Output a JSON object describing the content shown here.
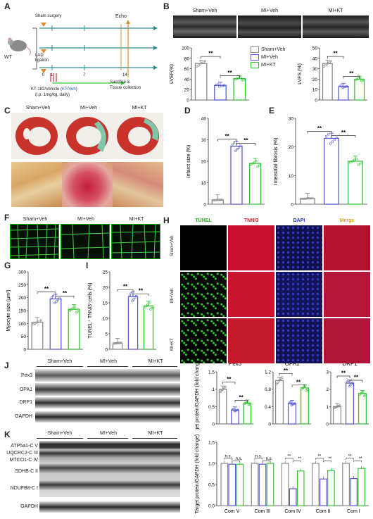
{
  "panels": {
    "A": "A",
    "B": "B",
    "C": "C",
    "D": "D",
    "E": "E",
    "F": "F",
    "G": "G",
    "H": "H",
    "I": "I",
    "J": "J",
    "K": "K"
  },
  "colors": {
    "sham": "#8a8a8a",
    "miveh": "#5b5bd6",
    "mikt": "#35c435",
    "protocol_teal": "#2e8b8b",
    "protocol_orange": "#e08a2a",
    "protocol_green": "#33cc33",
    "protocol_blue": "#2255cc"
  },
  "groups": {
    "sham": "Sham+Veh",
    "miveh": "MI+Veh",
    "mikt": "MI+KT"
  },
  "panelA": {
    "mouse": "WT",
    "sham": "Sham surgery",
    "lad": "LAD ligation",
    "echo": "Echo",
    "ticks": [
      "0",
      "1",
      "7",
      "14"
    ],
    "drug_prefix": "KT-182/Vehicle (",
    "drug_kt": "KT",
    "drug_sep": "/",
    "drug_veh": "Veh",
    "drug_suffix": ")",
    "dose": "(i.p. 1mg/kg, daily)",
    "sacrifice": "Sacrifice &",
    "tissue": "Tissue collection"
  },
  "panelB": {
    "sig": "**"
  },
  "chart_data": [
    {
      "panel": "B-LVEF",
      "type": "bar",
      "categories": [
        "Sham+Veh",
        "MI+Veh",
        "MI+KT"
      ],
      "values": [
        70,
        28,
        41
      ],
      "ylabel": "LVEF(%)",
      "ylim": [
        0,
        100
      ],
      "yticks": [
        0,
        20,
        40,
        60,
        80,
        100
      ],
      "sig": [
        "**",
        "**"
      ]
    },
    {
      "panel": "B-LVFS",
      "type": "bar",
      "categories": [
        "Sham+Veh",
        "MI+Veh",
        "MI+KT"
      ],
      "values": [
        35,
        13,
        20
      ],
      "ylabel": "LVFS (%)",
      "ylim": [
        0,
        50
      ],
      "yticks": [
        0,
        10,
        20,
        30,
        40,
        50
      ],
      "sig": [
        "**",
        "**"
      ]
    },
    {
      "panel": "D",
      "type": "bar",
      "categories": [
        "Sham+Veh",
        "MI+Veh",
        "MI+KT"
      ],
      "values": [
        2,
        27,
        19
      ],
      "ylabel": "Infarct size (%)",
      "ylim": [
        0,
        40
      ],
      "yticks": [
        0,
        10,
        20,
        30,
        40
      ],
      "sig": [
        "**",
        "**"
      ]
    },
    {
      "panel": "E",
      "type": "bar",
      "categories": [
        "Sham+Veh",
        "MI+Veh",
        "MI+KT"
      ],
      "values": [
        2,
        23,
        15
      ],
      "ylabel": "Interstitial fibrosis (%)",
      "ylim": [
        0,
        30
      ],
      "yticks": [
        0,
        10,
        20,
        30
      ],
      "sig": [
        "**",
        "**"
      ]
    },
    {
      "panel": "G",
      "type": "bar",
      "categories": [
        "Sham+Veh",
        "MI+Veh",
        "MI+KT"
      ],
      "values": [
        105,
        195,
        155
      ],
      "ylabel": "Myocyte size (µm²)",
      "ylim": [
        0,
        300
      ],
      "yticks": [
        0,
        50,
        100,
        150,
        200,
        250,
        300
      ],
      "sig": [
        "**",
        "**"
      ]
    },
    {
      "panel": "I",
      "type": "bar",
      "categories": [
        "Sham+Veh",
        "MI+Veh",
        "MI+KT"
      ],
      "values": [
        2,
        17,
        14
      ],
      "ylabel": "TUNEL⁺ TNNI3⁺cells (%)",
      "ylim": [
        0,
        25
      ],
      "yticks": [
        0,
        5,
        10,
        15,
        20,
        25
      ],
      "sig": [
        "**",
        "**"
      ]
    },
    {
      "panel": "J-Pex3",
      "type": "bar",
      "title": "Pex3",
      "categories": [
        "Sham+Veh",
        "MI+Veh",
        "MI+KT"
      ],
      "values": [
        1.0,
        0.4,
        0.6
      ],
      "ylabel": "Target protein/GAPDH (fold change)",
      "ylim": [
        0,
        1.5
      ],
      "yticks": [
        0.0,
        0.5,
        1.0,
        1.5
      ],
      "sig": [
        "**",
        "**"
      ]
    },
    {
      "panel": "J-OPA1",
      "type": "bar",
      "title": "OPA1",
      "categories": [
        "Sham+Veh",
        "MI+Veh",
        "MI+KT"
      ],
      "values": [
        1.0,
        0.47,
        0.83
      ],
      "ylim": [
        0,
        1.2
      ],
      "yticks": [
        0.0,
        0.4,
        0.8,
        1.2
      ],
      "sig": [
        "**",
        "**"
      ]
    },
    {
      "panel": "J-DRP1",
      "type": "bar",
      "title": "DRP1",
      "categories": [
        "Sham+Veh",
        "MI+Veh",
        "MI+KT"
      ],
      "values": [
        1.0,
        2.35,
        1.75
      ],
      "ylim": [
        0,
        3
      ],
      "yticks": [
        0,
        1,
        2,
        3
      ],
      "sig": [
        "**",
        "**"
      ]
    },
    {
      "panel": "K",
      "type": "bar",
      "categories": [
        "Com V",
        "Com III",
        "Com IV",
        "Com II",
        "Com I"
      ],
      "series": [
        {
          "name": "Sham+Veh",
          "values": [
            1.0,
            1.0,
            1.0,
            1.0,
            1.0
          ]
        },
        {
          "name": "MI+Veh",
          "values": [
            0.98,
            0.98,
            0.4,
            0.63,
            0.64
          ]
        },
        {
          "name": "MI+KT",
          "values": [
            0.98,
            1.0,
            0.82,
            0.83,
            0.88
          ]
        }
      ],
      "ylabel": "Target protein/GAPDH (fold change)",
      "ylim": [
        0,
        1.5
      ],
      "yticks": [
        0.0,
        0.5,
        1.0,
        1.5
      ],
      "sig": [
        [
          "n.s.",
          "n.s."
        ],
        [
          "n.s.",
          "n.s."
        ],
        [
          "**",
          "**"
        ],
        [
          "**",
          "**"
        ],
        [
          "**",
          "**"
        ]
      ]
    }
  ],
  "panelH": {
    "cols": [
      "TUNEL",
      "TNNI3",
      "DAPI",
      "Merge"
    ],
    "rows": [
      "Sham+Veh",
      "MI+Veh",
      "MI+KT"
    ]
  },
  "panelJ": {
    "proteins": [
      "Pex3",
      "OPA1",
      "DRP1",
      "GAPDH"
    ]
  },
  "panelK": {
    "proteins": [
      "ATP5a1-C V",
      "UQCRC2-C III",
      "MTCO1-C IV",
      "SDHB-C II",
      "NDUFB8-C I",
      "GAPDH"
    ]
  }
}
